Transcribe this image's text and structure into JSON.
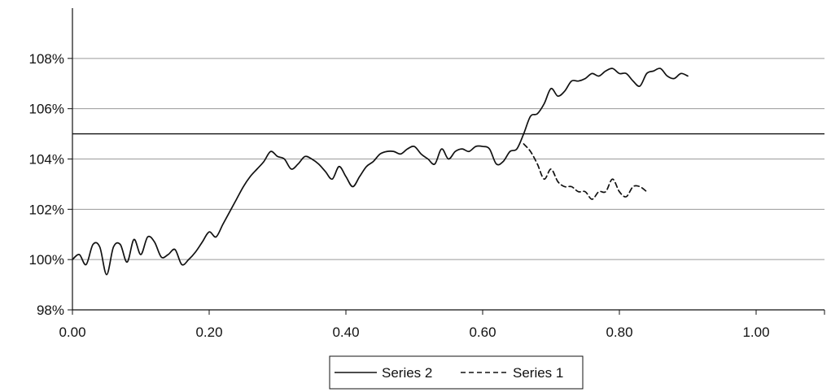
{
  "chart_data": {
    "type": "line",
    "title": "",
    "xlabel": "",
    "ylabel": "",
    "xlim": [
      0.0,
      1.1
    ],
    "ylim": [
      98,
      110
    ],
    "x_ticks": [
      {
        "value": 0.0,
        "label": "0.00"
      },
      {
        "value": 0.2,
        "label": "0.20"
      },
      {
        "value": 0.4,
        "label": "0.40"
      },
      {
        "value": 0.6,
        "label": "0.60"
      },
      {
        "value": 0.8,
        "label": "0.80"
      },
      {
        "value": 1.0,
        "label": "1.00"
      }
    ],
    "y_ticks": [
      {
        "value": 98,
        "label": "98%"
      },
      {
        "value": 100,
        "label": "100%"
      },
      {
        "value": 102,
        "label": "102%"
      },
      {
        "value": 104,
        "label": "104%"
      },
      {
        "value": 106,
        "label": "106%"
      },
      {
        "value": 108,
        "label": "108%"
      }
    ],
    "grid": "horizontal",
    "reference_line": {
      "y": 105
    },
    "legend": {
      "position": "bottom-center"
    },
    "series": [
      {
        "name": "Series 2",
        "style": "solid",
        "color": "#111111",
        "points": [
          [
            0.0,
            100.0
          ],
          [
            0.01,
            100.2
          ],
          [
            0.02,
            99.8
          ],
          [
            0.03,
            100.6
          ],
          [
            0.04,
            100.5
          ],
          [
            0.05,
            99.4
          ],
          [
            0.06,
            100.5
          ],
          [
            0.07,
            100.6
          ],
          [
            0.08,
            99.9
          ],
          [
            0.09,
            100.8
          ],
          [
            0.1,
            100.2
          ],
          [
            0.11,
            100.9
          ],
          [
            0.12,
            100.7
          ],
          [
            0.13,
            100.1
          ],
          [
            0.14,
            100.2
          ],
          [
            0.15,
            100.4
          ],
          [
            0.16,
            99.8
          ],
          [
            0.17,
            100.0
          ],
          [
            0.18,
            100.3
          ],
          [
            0.19,
            100.7
          ],
          [
            0.2,
            101.1
          ],
          [
            0.21,
            100.9
          ],
          [
            0.22,
            101.4
          ],
          [
            0.23,
            101.9
          ],
          [
            0.24,
            102.4
          ],
          [
            0.25,
            102.9
          ],
          [
            0.26,
            103.3
          ],
          [
            0.27,
            103.6
          ],
          [
            0.28,
            103.9
          ],
          [
            0.29,
            104.3
          ],
          [
            0.3,
            104.1
          ],
          [
            0.31,
            104.0
          ],
          [
            0.32,
            103.6
          ],
          [
            0.33,
            103.8
          ],
          [
            0.34,
            104.1
          ],
          [
            0.35,
            104.0
          ],
          [
            0.36,
            103.8
          ],
          [
            0.37,
            103.5
          ],
          [
            0.38,
            103.2
          ],
          [
            0.39,
            103.7
          ],
          [
            0.4,
            103.3
          ],
          [
            0.41,
            102.9
          ],
          [
            0.42,
            103.3
          ],
          [
            0.43,
            103.7
          ],
          [
            0.44,
            103.9
          ],
          [
            0.45,
            104.2
          ],
          [
            0.46,
            104.3
          ],
          [
            0.47,
            104.3
          ],
          [
            0.48,
            104.2
          ],
          [
            0.49,
            104.4
          ],
          [
            0.5,
            104.5
          ],
          [
            0.51,
            104.2
          ],
          [
            0.52,
            104.0
          ],
          [
            0.53,
            103.8
          ],
          [
            0.54,
            104.4
          ],
          [
            0.55,
            104.0
          ],
          [
            0.56,
            104.3
          ],
          [
            0.57,
            104.4
          ],
          [
            0.58,
            104.3
          ],
          [
            0.59,
            104.5
          ],
          [
            0.6,
            104.5
          ],
          [
            0.61,
            104.4
          ],
          [
            0.62,
            103.8
          ],
          [
            0.63,
            103.9
          ],
          [
            0.64,
            104.3
          ],
          [
            0.65,
            104.4
          ],
          [
            0.66,
            105.0
          ],
          [
            0.67,
            105.7
          ],
          [
            0.68,
            105.8
          ],
          [
            0.69,
            106.2
          ],
          [
            0.7,
            106.8
          ],
          [
            0.71,
            106.5
          ],
          [
            0.72,
            106.7
          ],
          [
            0.73,
            107.1
          ],
          [
            0.74,
            107.1
          ],
          [
            0.75,
            107.2
          ],
          [
            0.76,
            107.4
          ],
          [
            0.77,
            107.3
          ],
          [
            0.78,
            107.5
          ],
          [
            0.79,
            107.6
          ],
          [
            0.8,
            107.4
          ],
          [
            0.81,
            107.4
          ],
          [
            0.82,
            107.1
          ],
          [
            0.83,
            106.9
          ],
          [
            0.84,
            107.4
          ],
          [
            0.85,
            107.5
          ],
          [
            0.86,
            107.6
          ],
          [
            0.87,
            107.3
          ],
          [
            0.88,
            107.2
          ],
          [
            0.89,
            107.4
          ],
          [
            0.9,
            107.3
          ]
        ]
      },
      {
        "name": "Series 1",
        "style": "dashed",
        "color": "#111111",
        "points": [
          [
            0.66,
            104.6
          ],
          [
            0.67,
            104.3
          ],
          [
            0.68,
            103.8
          ],
          [
            0.69,
            103.2
          ],
          [
            0.7,
            103.6
          ],
          [
            0.71,
            103.1
          ],
          [
            0.72,
            102.9
          ],
          [
            0.73,
            102.9
          ],
          [
            0.74,
            102.7
          ],
          [
            0.75,
            102.7
          ],
          [
            0.76,
            102.4
          ],
          [
            0.77,
            102.7
          ],
          [
            0.78,
            102.7
          ],
          [
            0.79,
            103.2
          ],
          [
            0.8,
            102.7
          ],
          [
            0.81,
            102.5
          ],
          [
            0.82,
            102.9
          ],
          [
            0.83,
            102.9
          ],
          [
            0.84,
            102.7
          ]
        ]
      }
    ]
  }
}
